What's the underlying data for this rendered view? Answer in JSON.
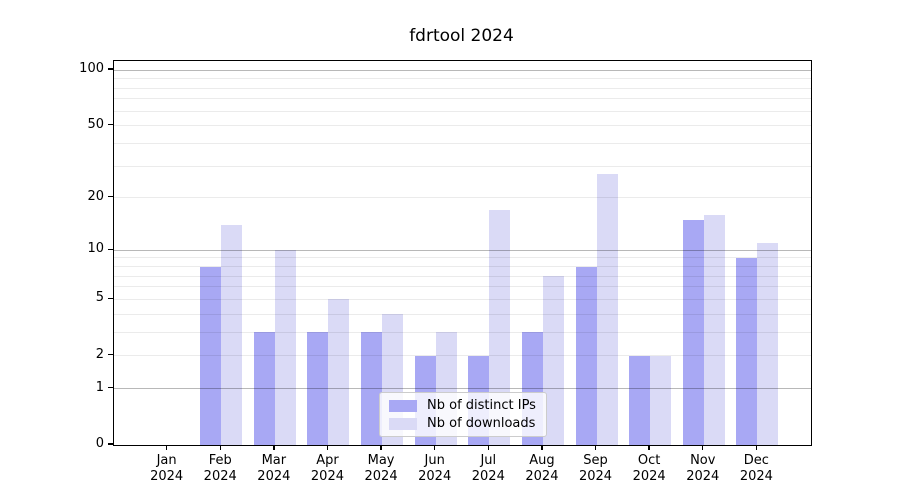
{
  "figure": {
    "title": "fdrtool 2024"
  },
  "chart_data": {
    "type": "bar",
    "title": "fdrtool 2024",
    "x_months": [
      "Jan",
      "Feb",
      "Mar",
      "Apr",
      "May",
      "Jun",
      "Jul",
      "Aug",
      "Sep",
      "Oct",
      "Nov",
      "Dec"
    ],
    "x_year": "2024",
    "series": [
      {
        "name": "Nb of distinct IPs",
        "color": "#a8a8f4",
        "values": [
          0,
          8,
          3,
          3,
          3,
          2,
          2,
          3,
          8,
          2,
          15,
          9
        ]
      },
      {
        "name": "Nb of downloads",
        "color": "#dadaf6",
        "values": [
          0,
          14,
          10,
          5,
          4,
          3,
          17,
          7,
          27,
          2,
          16,
          11
        ]
      }
    ],
    "yscale": "log1p",
    "ylim": [
      0,
      112
    ],
    "ytick_labels": [
      0,
      1,
      2,
      5,
      10,
      20,
      50,
      100
    ],
    "major_gridlines": [
      1,
      10,
      100
    ],
    "minor_gridlines": [
      2,
      3,
      4,
      5,
      6,
      7,
      8,
      9,
      20,
      30,
      40,
      50,
      60,
      70,
      80,
      90
    ],
    "grid": true,
    "legend_position": "lower-center"
  },
  "colors": {
    "axis": "#000000",
    "major_grid": "rgba(0,0,0,0.28)",
    "minor_grid": "rgba(0,0,0,0.08)",
    "legend_background": "rgba(255,255,255,0.8)",
    "legend_border": "#cccccc"
  }
}
